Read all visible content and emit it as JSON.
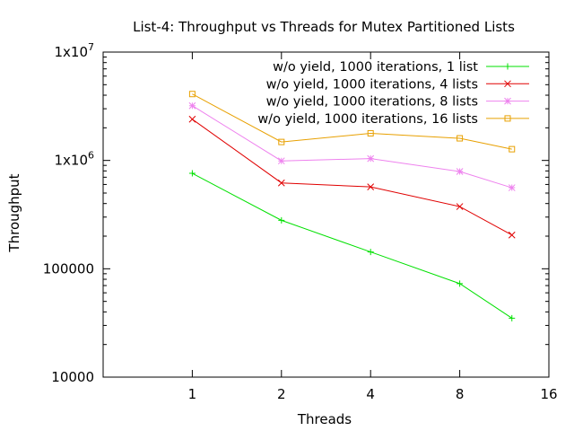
{
  "chart_data": {
    "type": "line",
    "title": "List-4: Throughput vs Threads for Mutex Partitioned Lists",
    "xlabel": "Threads",
    "ylabel": "Throughput",
    "x_scale": "log2",
    "y_scale": "log10",
    "xlim": [
      0.5,
      16
    ],
    "ylim": [
      10000,
      10000000
    ],
    "x_ticks": [
      {
        "value": 1,
        "label": "1"
      },
      {
        "value": 2,
        "label": "2"
      },
      {
        "value": 4,
        "label": "4"
      },
      {
        "value": 8,
        "label": "8"
      },
      {
        "value": 16,
        "label": "16"
      }
    ],
    "y_ticks": [
      {
        "value": 10000,
        "label": "10000",
        "sup": ""
      },
      {
        "value": 100000,
        "label": "100000",
        "sup": ""
      },
      {
        "value": 1000000,
        "label": "1x10",
        "sup": "6"
      },
      {
        "value": 10000000,
        "label": "1x10",
        "sup": "7"
      }
    ],
    "grid": false,
    "legend_position": "top-right",
    "x": [
      1,
      2,
      4,
      8,
      12
    ],
    "series": [
      {
        "name": "w/o yield, 1000 iterations, 1 list",
        "color": "#00e000",
        "marker": "plus",
        "values": [
          760000,
          280000,
          143000,
          73000,
          35000
        ]
      },
      {
        "name": "w/o yield, 1000 iterations, 4 lists",
        "color": "#e00000",
        "marker": "cross",
        "values": [
          2400000,
          620000,
          570000,
          375000,
          205000
        ]
      },
      {
        "name": "w/o yield, 1000 iterations, 8 lists",
        "color": "#ee82ee",
        "marker": "star",
        "values": [
          3200000,
          990000,
          1040000,
          790000,
          560000
        ]
      },
      {
        "name": "w/o yield, 1000 iterations, 16 lists",
        "color": "#e8a000",
        "marker": "square",
        "values": [
          4100000,
          1480000,
          1780000,
          1600000,
          1270000
        ]
      }
    ]
  }
}
